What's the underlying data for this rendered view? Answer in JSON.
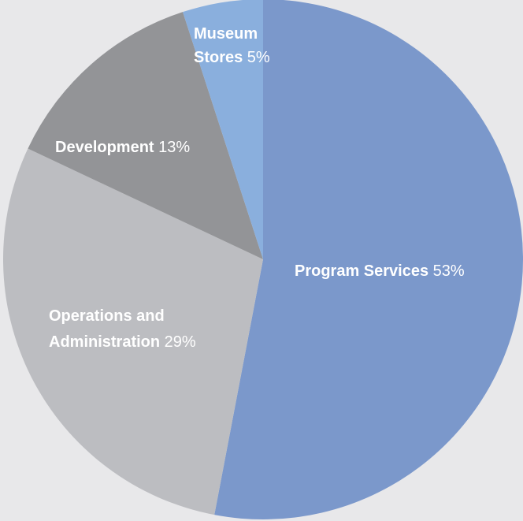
{
  "chart_data": {
    "type": "pie",
    "title": "",
    "start_angle_deg": 0,
    "direction": "clockwise",
    "slices": [
      {
        "name_lines": [
          "Program Services"
        ],
        "value": 53,
        "pct_label": "53%",
        "color": "#7b98cb"
      },
      {
        "name_lines": [
          "Operations and",
          "Administration"
        ],
        "value": 29,
        "pct_label": "29%",
        "color": "#bcbdc1"
      },
      {
        "name_lines": [
          "Development"
        ],
        "value": 13,
        "pct_label": "13%",
        "color": "#939497"
      },
      {
        "name_lines": [
          "Museum",
          "Stores"
        ],
        "value": 5,
        "pct_label": "5%",
        "color": "#8aafdd"
      }
    ]
  }
}
